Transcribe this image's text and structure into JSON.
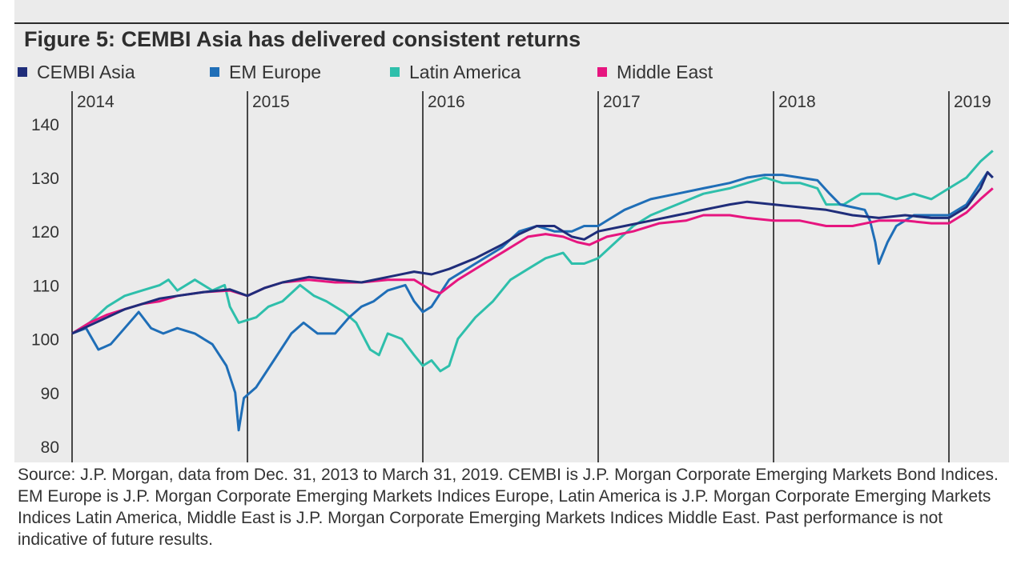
{
  "title": "Figure 5: CEMBI Asia has delivered consistent returns",
  "source_note": "Source: J.P. Morgan, data from Dec. 31, 2013 to March 31, 2019. CEMBI is J.P. Morgan Corporate Emerging Markets Bond Indices. EM Europe is J.P. Morgan Corporate Emerging Markets Indices Europe, Latin America is J.P. Morgan Corporate Emerging Markets Indices Latin America, Middle East is J.P. Morgan Corporate Emerging Markets Indices Middle East. Past performance is not indicative of future results.",
  "colors": {
    "background": "#ebebeb",
    "cembi_asia": "#1f2d7a",
    "em_europe": "#1f6eb7",
    "latin_america": "#2ebfab",
    "middle_east": "#e6157f"
  },
  "chart_data": {
    "type": "line",
    "title": "Figure 5: CEMBI Asia has delivered consistent returns",
    "xlabel": "",
    "ylabel": "",
    "x_range": [
      2014.0,
      2019.25
    ],
    "ylim": [
      80,
      145
    ],
    "y_ticks": [
      80,
      90,
      100,
      110,
      120,
      130,
      140
    ],
    "year_labels": [
      "2014",
      "2015",
      "2016",
      "2017",
      "2018",
      "2019"
    ],
    "year_positions": [
      2014,
      2015,
      2016,
      2017,
      2018,
      2019
    ],
    "legend_position": "top",
    "grid": false,
    "series": [
      {
        "name": "CEMBI Asia",
        "color": "#1f2d7a",
        "points": [
          [
            2014.0,
            101
          ],
          [
            2014.1,
            102.5
          ],
          [
            2014.2,
            104
          ],
          [
            2014.3,
            105.5
          ],
          [
            2014.4,
            106.5
          ],
          [
            2014.5,
            107.5
          ],
          [
            2014.6,
            108
          ],
          [
            2014.75,
            108.7
          ],
          [
            2014.9,
            109.2
          ],
          [
            2015.0,
            108
          ],
          [
            2015.1,
            109.5
          ],
          [
            2015.2,
            110.5
          ],
          [
            2015.35,
            111.5
          ],
          [
            2015.5,
            111
          ],
          [
            2015.65,
            110.5
          ],
          [
            2015.8,
            111.5
          ],
          [
            2015.95,
            112.5
          ],
          [
            2016.05,
            112
          ],
          [
            2016.15,
            113
          ],
          [
            2016.3,
            115
          ],
          [
            2016.45,
            117.5
          ],
          [
            2016.55,
            119.5
          ],
          [
            2016.65,
            121
          ],
          [
            2016.75,
            121
          ],
          [
            2016.85,
            119
          ],
          [
            2016.92,
            118.5
          ],
          [
            2017.0,
            120
          ],
          [
            2017.15,
            121
          ],
          [
            2017.3,
            122
          ],
          [
            2017.45,
            123
          ],
          [
            2017.6,
            124
          ],
          [
            2017.75,
            125
          ],
          [
            2017.85,
            125.5
          ],
          [
            2018.0,
            125
          ],
          [
            2018.15,
            124.5
          ],
          [
            2018.3,
            124
          ],
          [
            2018.45,
            123
          ],
          [
            2018.6,
            122.5
          ],
          [
            2018.75,
            123
          ],
          [
            2018.9,
            122.5
          ],
          [
            2019.0,
            122.5
          ],
          [
            2019.1,
            124.5
          ],
          [
            2019.18,
            128
          ],
          [
            2019.22,
            131
          ],
          [
            2019.25,
            130
          ]
        ]
      },
      {
        "name": "EM Europe",
        "color": "#1f6eb7",
        "points": [
          [
            2014.0,
            101
          ],
          [
            2014.08,
            102
          ],
          [
            2014.15,
            98
          ],
          [
            2014.22,
            99
          ],
          [
            2014.3,
            102
          ],
          [
            2014.38,
            105
          ],
          [
            2014.45,
            102
          ],
          [
            2014.52,
            101
          ],
          [
            2014.6,
            102
          ],
          [
            2014.7,
            101
          ],
          [
            2014.8,
            99
          ],
          [
            2014.88,
            95
          ],
          [
            2014.93,
            90
          ],
          [
            2014.95,
            83
          ],
          [
            2014.98,
            89
          ],
          [
            2015.05,
            91
          ],
          [
            2015.15,
            96
          ],
          [
            2015.25,
            101
          ],
          [
            2015.32,
            103
          ],
          [
            2015.4,
            101
          ],
          [
            2015.5,
            101
          ],
          [
            2015.58,
            104
          ],
          [
            2015.65,
            106
          ],
          [
            2015.72,
            107
          ],
          [
            2015.8,
            109
          ],
          [
            2015.9,
            110
          ],
          [
            2015.95,
            107
          ],
          [
            2016.0,
            105
          ],
          [
            2016.05,
            106
          ],
          [
            2016.15,
            111
          ],
          [
            2016.3,
            114
          ],
          [
            2016.45,
            117
          ],
          [
            2016.55,
            120
          ],
          [
            2016.65,
            121
          ],
          [
            2016.75,
            120
          ],
          [
            2016.85,
            120
          ],
          [
            2016.92,
            121
          ],
          [
            2017.0,
            121
          ],
          [
            2017.15,
            124
          ],
          [
            2017.3,
            126
          ],
          [
            2017.45,
            127
          ],
          [
            2017.6,
            128
          ],
          [
            2017.75,
            129
          ],
          [
            2017.85,
            130
          ],
          [
            2017.95,
            130.5
          ],
          [
            2018.05,
            130.5
          ],
          [
            2018.15,
            130
          ],
          [
            2018.25,
            129.5
          ],
          [
            2018.32,
            127
          ],
          [
            2018.38,
            125
          ],
          [
            2018.45,
            124.5
          ],
          [
            2018.52,
            124
          ],
          [
            2018.55,
            122
          ],
          [
            2018.58,
            118
          ],
          [
            2018.6,
            114
          ],
          [
            2018.65,
            118
          ],
          [
            2018.7,
            121
          ],
          [
            2018.8,
            123
          ],
          [
            2018.9,
            123
          ],
          [
            2019.0,
            123
          ],
          [
            2019.1,
            125
          ],
          [
            2019.18,
            129
          ],
          [
            2019.22,
            131
          ],
          [
            2019.25,
            130
          ]
        ]
      },
      {
        "name": "Latin America",
        "color": "#2ebfab",
        "points": [
          [
            2014.0,
            101
          ],
          [
            2014.1,
            103
          ],
          [
            2014.2,
            106
          ],
          [
            2014.3,
            108
          ],
          [
            2014.4,
            109
          ],
          [
            2014.5,
            110
          ],
          [
            2014.55,
            111
          ],
          [
            2014.6,
            109
          ],
          [
            2014.7,
            111
          ],
          [
            2014.8,
            109
          ],
          [
            2014.87,
            110
          ],
          [
            2014.9,
            106
          ],
          [
            2014.95,
            103
          ],
          [
            2015.05,
            104
          ],
          [
            2015.12,
            106
          ],
          [
            2015.2,
            107
          ],
          [
            2015.3,
            110
          ],
          [
            2015.38,
            108
          ],
          [
            2015.45,
            107
          ],
          [
            2015.55,
            105
          ],
          [
            2015.62,
            103
          ],
          [
            2015.7,
            98
          ],
          [
            2015.75,
            97
          ],
          [
            2015.8,
            101
          ],
          [
            2015.88,
            100
          ],
          [
            2015.95,
            97
          ],
          [
            2016.0,
            95
          ],
          [
            2016.05,
            96
          ],
          [
            2016.1,
            94
          ],
          [
            2016.15,
            95
          ],
          [
            2016.2,
            100
          ],
          [
            2016.3,
            104
          ],
          [
            2016.4,
            107
          ],
          [
            2016.5,
            111
          ],
          [
            2016.6,
            113
          ],
          [
            2016.7,
            115
          ],
          [
            2016.8,
            116
          ],
          [
            2016.85,
            114
          ],
          [
            2016.92,
            114
          ],
          [
            2017.0,
            115
          ],
          [
            2017.1,
            118
          ],
          [
            2017.2,
            121
          ],
          [
            2017.3,
            123
          ],
          [
            2017.45,
            125
          ],
          [
            2017.6,
            127
          ],
          [
            2017.75,
            128
          ],
          [
            2017.85,
            129
          ],
          [
            2017.95,
            130
          ],
          [
            2018.05,
            129
          ],
          [
            2018.15,
            129
          ],
          [
            2018.25,
            128
          ],
          [
            2018.3,
            125
          ],
          [
            2018.4,
            125
          ],
          [
            2018.5,
            127
          ],
          [
            2018.6,
            127
          ],
          [
            2018.7,
            126
          ],
          [
            2018.8,
            127
          ],
          [
            2018.9,
            126
          ],
          [
            2019.0,
            128
          ],
          [
            2019.1,
            130
          ],
          [
            2019.18,
            133
          ],
          [
            2019.25,
            135
          ]
        ]
      },
      {
        "name": "Middle East",
        "color": "#e6157f",
        "points": [
          [
            2014.0,
            101
          ],
          [
            2014.1,
            103
          ],
          [
            2014.2,
            104.5
          ],
          [
            2014.3,
            105.5
          ],
          [
            2014.4,
            106.5
          ],
          [
            2014.5,
            107
          ],
          [
            2014.6,
            108
          ],
          [
            2014.75,
            108.7
          ],
          [
            2014.9,
            109
          ],
          [
            2015.0,
            108
          ],
          [
            2015.1,
            109.5
          ],
          [
            2015.2,
            110.5
          ],
          [
            2015.35,
            111
          ],
          [
            2015.5,
            110.5
          ],
          [
            2015.65,
            110.5
          ],
          [
            2015.8,
            111
          ],
          [
            2015.95,
            111
          ],
          [
            2016.05,
            109
          ],
          [
            2016.1,
            108.5
          ],
          [
            2016.2,
            111
          ],
          [
            2016.35,
            114
          ],
          [
            2016.5,
            117
          ],
          [
            2016.6,
            119
          ],
          [
            2016.7,
            119.5
          ],
          [
            2016.8,
            119
          ],
          [
            2016.88,
            118
          ],
          [
            2016.95,
            117.5
          ],
          [
            2017.05,
            119
          ],
          [
            2017.2,
            120
          ],
          [
            2017.35,
            121.5
          ],
          [
            2017.5,
            122
          ],
          [
            2017.6,
            123
          ],
          [
            2017.75,
            123
          ],
          [
            2017.85,
            122.5
          ],
          [
            2018.0,
            122
          ],
          [
            2018.15,
            122
          ],
          [
            2018.3,
            121
          ],
          [
            2018.45,
            121
          ],
          [
            2018.6,
            122
          ],
          [
            2018.75,
            122
          ],
          [
            2018.9,
            121.5
          ],
          [
            2019.0,
            121.5
          ],
          [
            2019.1,
            123.5
          ],
          [
            2019.18,
            126
          ],
          [
            2019.25,
            128
          ]
        ]
      }
    ]
  }
}
